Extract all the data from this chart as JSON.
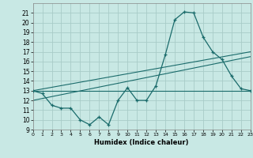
{
  "xlabel": "Humidex (Indice chaleur)",
  "bg_color": "#c8e8e4",
  "line_color": "#1a6b6b",
  "grid_color": "#a8ccc8",
  "xmin": 0,
  "xmax": 23,
  "ymin": 9,
  "ymax": 22,
  "line1_x": [
    0,
    1,
    2,
    3,
    4,
    5,
    6,
    7,
    8,
    9,
    10,
    11,
    12,
    13,
    14,
    15,
    16,
    17,
    18,
    19,
    20,
    21,
    22,
    23
  ],
  "line1_y": [
    13,
    12.7,
    11.5,
    11.2,
    11.2,
    10.0,
    9.5,
    10.3,
    9.5,
    12.0,
    13.3,
    12.0,
    12.0,
    13.5,
    16.7,
    20.3,
    21.1,
    21.0,
    18.5,
    17.0,
    16.2,
    14.5,
    13.2,
    13.0
  ],
  "line2_x": [
    0,
    23
  ],
  "line2_y": [
    13.0,
    13.0
  ],
  "line3_x": [
    0,
    23
  ],
  "line3_y": [
    12.0,
    16.5
  ],
  "line4_x": [
    0,
    23
  ],
  "line4_y": [
    13.0,
    17.0
  ],
  "yticks": [
    9,
    10,
    11,
    12,
    13,
    14,
    15,
    16,
    17,
    18,
    19,
    20,
    21
  ],
  "xticks": [
    0,
    1,
    2,
    3,
    4,
    5,
    6,
    7,
    8,
    9,
    10,
    11,
    12,
    13,
    14,
    15,
    16,
    17,
    18,
    19,
    20,
    21,
    22,
    23
  ]
}
